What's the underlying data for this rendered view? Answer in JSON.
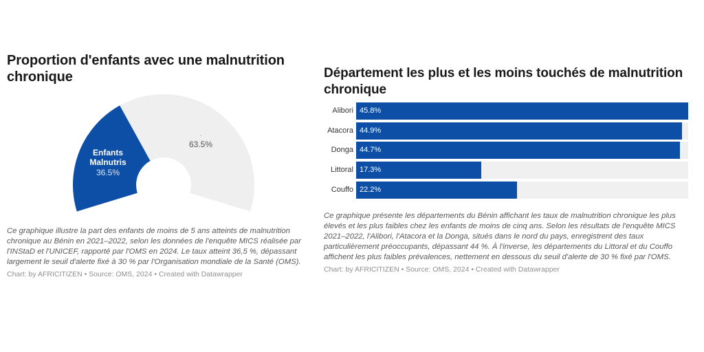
{
  "left_chart": {
    "title": "Proportion d'enfants avec une malnutrition chronique",
    "description": "Ce graphique illustre la part des enfants de moins de 5 ans atteints de malnutrition chronique au Bénin en 2021–2022, selon les données de l'enquête MICS réalisée par l'INStaD et l'UNICEF, rapporté par l'OMS en 2024. Le taux atteint 36,5 %, dépassant largement le seuil d'alerte fixé à 30 % par l'Organisation mondiale de la Santé (OMS).",
    "credit": "Chart: by AFRICITIZEN • Source: OMS, 2024 • Created with Datawrapper"
  },
  "right_chart": {
    "title": "Département les plus et les moins touchés de malnutrition chronique",
    "description": "Ce graphique présente les départements du Bénin affichant les taux de malnutrition chronique les plus élevés et les plus faibles chez les enfants de moins de cinq ans. Selon les résultats de l'enquête MICS 2021–2022, l'Alibori, l'Atacora et la Donga, situés dans le nord du pays, enregistrent des taux particulièrement préoccupants, dépassant 44 %. À l'inverse, les départements du Littoral et du Couffo affichent les plus faibles prévalences, nettement en dessous du seuil d'alerte de 30 % fixé par l'OMS.",
    "credit": "Chart: by AFRICITIZEN • Source: OMS, 2024 • Created with Datawrapper"
  },
  "colors": {
    "primary": "#0d4ea6",
    "track": "#f0f0f0",
    "donut_rest": "#efefef"
  },
  "chart_data": [
    {
      "type": "pie",
      "subtype": "half-donut",
      "title": "Proportion d'enfants avec une malnutrition chronique",
      "slices": [
        {
          "label": "Enfants Malnutris",
          "value": 36.5,
          "display": "36.5%",
          "color": "#0d4ea6"
        },
        {
          "label": ".",
          "value": 63.5,
          "display": "63.5%",
          "color": "#efefef"
        }
      ],
      "unit": "%"
    },
    {
      "type": "bar",
      "orientation": "horizontal",
      "title": "Département les plus et les moins touchés de malnutrition chronique",
      "categories": [
        "Alibori",
        "Atacora",
        "Donga",
        "Littoral",
        "Couffo"
      ],
      "values": [
        45.8,
        44.9,
        44.7,
        17.3,
        22.2
      ],
      "labels": [
        "45.8%",
        "44.9%",
        "44.7%",
        "17.3%",
        "22.2%"
      ],
      "xlim": [
        0,
        45.8
      ],
      "unit": "%",
      "grid": false,
      "legend": "none"
    }
  ]
}
